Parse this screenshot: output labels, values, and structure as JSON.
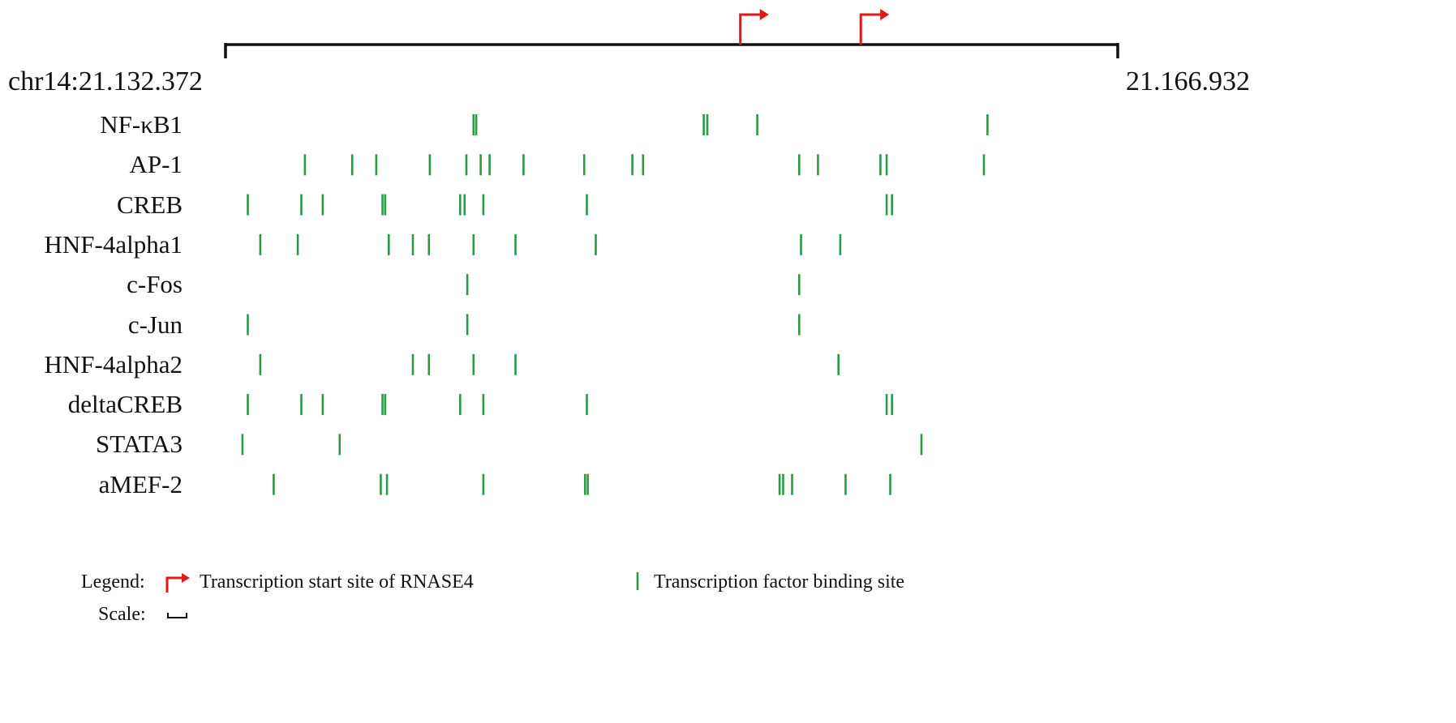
{
  "coordinates": {
    "start": "chr14:21.132.372",
    "end": "21.166.932"
  },
  "colors": {
    "axis": "#111111",
    "tss_arrow": "#e0191b",
    "binding_site": "#2a9a46"
  },
  "tss_positions": [
    0.577,
    0.712
  ],
  "factors": [
    {
      "label": "NF-κB1",
      "sites": [
        0.278,
        0.281,
        0.536,
        0.54,
        0.596,
        0.854
      ]
    },
    {
      "label": "AP-1",
      "sites": [
        0.089,
        0.142,
        0.169,
        0.229,
        0.27,
        0.286,
        0.296,
        0.334,
        0.402,
        0.456,
        0.468,
        0.643,
        0.664,
        0.734,
        0.741,
        0.85
      ]
    },
    {
      "label": "CREB",
      "sites": [
        0.025,
        0.085,
        0.109,
        0.176,
        0.179,
        0.263,
        0.268,
        0.289,
        0.405,
        0.741,
        0.747
      ]
    },
    {
      "label": "HNF-4alpha1",
      "sites": [
        0.039,
        0.081,
        0.183,
        0.21,
        0.228,
        0.278,
        0.325,
        0.415,
        0.645,
        0.689
      ]
    },
    {
      "label": "c-Fos",
      "sites": [
        0.271,
        0.643
      ]
    },
    {
      "label": "c-Jun",
      "sites": [
        0.025,
        0.271,
        0.643
      ]
    },
    {
      "label": "HNF-4alpha2",
      "sites": [
        0.039,
        0.21,
        0.228,
        0.278,
        0.325,
        0.687
      ]
    },
    {
      "label": "deltaCREB",
      "sites": [
        0.025,
        0.085,
        0.109,
        0.176,
        0.179,
        0.263,
        0.289,
        0.405,
        0.741,
        0.747
      ]
    },
    {
      "label": "STATA3",
      "sites": [
        0.019,
        0.128,
        0.78
      ]
    },
    {
      "label": "aMEF-2",
      "sites": [
        0.054,
        0.174,
        0.181,
        0.289,
        0.403,
        0.406,
        0.621,
        0.625,
        0.635,
        0.695,
        0.745
      ]
    }
  ],
  "legend": {
    "title": "Legend:",
    "tss_label": "Transcription start site of RNASE4",
    "tfbs_label": "Transcription factor binding site",
    "scale_label": "Scale:"
  }
}
